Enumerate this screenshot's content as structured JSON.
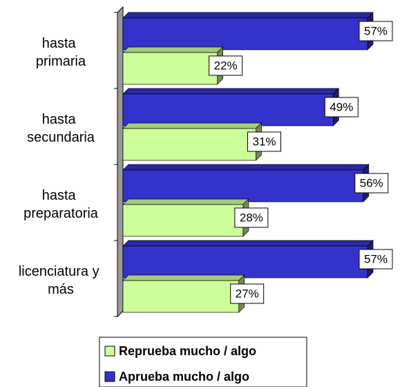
{
  "chart_data": {
    "type": "bar",
    "orientation": "horizontal",
    "categories": [
      "hasta primaria",
      "hasta secundaria",
      "hasta preparatoria",
      "licenciatura y más"
    ],
    "series": [
      {
        "name": "Reprueba mucho / algo",
        "color": "#ccff99",
        "values": [
          22,
          31,
          28,
          27
        ],
        "value_labels": [
          "22%",
          "31%",
          "28%",
          "27%"
        ]
      },
      {
        "name": "Aprueba mucho / algo",
        "color": "#3333cc",
        "values": [
          57,
          49,
          56,
          57
        ],
        "value_labels": [
          "57%",
          "49%",
          "56%",
          "57%"
        ]
      }
    ],
    "legend": "bottom"
  }
}
